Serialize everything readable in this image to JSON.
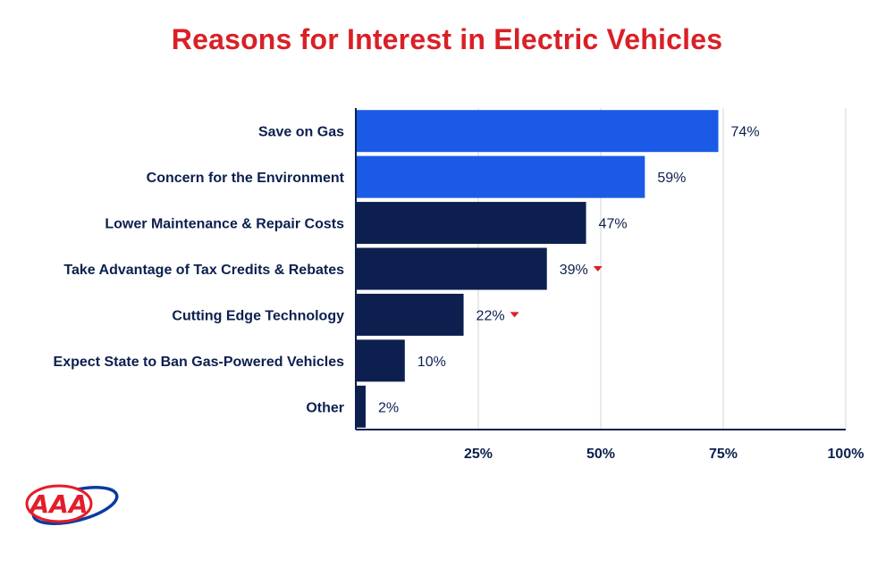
{
  "header": {
    "title": "Reasons for Interest in Electric Vehicles"
  },
  "colors": {
    "title": "#d92027",
    "highlight_bar": "#1a5ae6",
    "bar": "#0c1f4f",
    "grid": "#e3e3e3",
    "axis": "#0c1f4f",
    "down_marker": "#d92027",
    "logo_red": "#e31d2b",
    "logo_blue": "#0a3c9e"
  },
  "chart_data": {
    "type": "bar",
    "orientation": "horizontal",
    "title": "Reasons for Interest in Electric Vehicles",
    "xlabel": "",
    "ylabel": "",
    "xlim": [
      0,
      100
    ],
    "ticks": [
      {
        "value": 25,
        "label": "25%"
      },
      {
        "value": 50,
        "label": "50%"
      },
      {
        "value": 75,
        "label": "75%"
      },
      {
        "value": 100,
        "label": "100%"
      }
    ],
    "grid": true,
    "legend": "none",
    "categories": [
      "Save on Gas",
      "Concern for the Environment",
      "Lower Maintenance & Repair Costs",
      "Take Advantage of Tax Credits & Rebates",
      "Cutting Edge Technology",
      "Expect State to Ban Gas-Powered Vehicles",
      "Other"
    ],
    "values": [
      74,
      59,
      47,
      39,
      22,
      10,
      2
    ],
    "value_labels": [
      "74%",
      "59%",
      "47%",
      "39%",
      "22%",
      "10%",
      "2%"
    ],
    "highlighted": [
      true,
      true,
      false,
      false,
      false,
      false,
      false
    ],
    "decreased": [
      false,
      false,
      false,
      true,
      true,
      false,
      false
    ]
  },
  "logo": {
    "text": "AAA",
    "icon": "aaa-logo-icon"
  }
}
